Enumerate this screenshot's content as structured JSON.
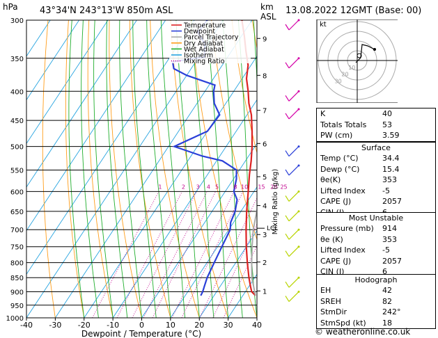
{
  "header": {
    "hpa_label": "hPa",
    "location": "43°34'N  243°13'W  850m  ASL",
    "km_label": "km",
    "asl_label": "ASL",
    "datetime": "13.08.2022  12GMT  (Base: 00)"
  },
  "chart_data": {
    "type": "line",
    "title": "",
    "xlabel": "Dewpoint / Temperature (°C)",
    "ylabel": "hPa",
    "xlim": [
      -40,
      40
    ],
    "ylim": [
      1000,
      300
    ],
    "x_ticks": [
      "-40",
      "-30",
      "-20",
      "-10",
      "0",
      "10",
      "20",
      "30",
      "40"
    ],
    "pressure_levels": [
      "300",
      "350",
      "400",
      "450",
      "500",
      "550",
      "600",
      "650",
      "700",
      "750",
      "800",
      "850",
      "900",
      "950",
      "1000"
    ],
    "km_ticks": [
      {
        "label": "9",
        "p": 323
      },
      {
        "label": "8",
        "p": 375
      },
      {
        "label": "7",
        "p": 432
      },
      {
        "label": "6",
        "p": 494
      },
      {
        "label": "5",
        "p": 565
      },
      {
        "label": "4",
        "p": 635
      },
      {
        "label": "3",
        "p": 714
      },
      {
        "label": "2",
        "p": 798
      },
      {
        "label": "1",
        "p": 897
      }
    ],
    "lcl_label": "LCL",
    "lcl_p": 696,
    "mixing_ratio_label": "Mixing Ratio (g/kg)",
    "mixing_ratio_values": [
      "1",
      "2",
      "3",
      "4",
      "5",
      "8",
      "10",
      "15",
      "20",
      "25"
    ],
    "legend": [
      "Temperature",
      "Dewpoint",
      "Parcel Trajectory",
      "Dry Adiabat",
      "Wet Adiabat",
      "Isotherm",
      "Mixing Ratio"
    ],
    "series": [
      {
        "name": "Temperature",
        "color": "#dd2222",
        "points": [
          [
            914,
            34.4
          ],
          [
            900,
            32.2
          ],
          [
            880,
            30.5
          ],
          [
            850,
            28.0
          ],
          [
            800,
            24.0
          ],
          [
            750,
            20.0
          ],
          [
            700,
            16.0
          ],
          [
            650,
            12.0
          ],
          [
            600,
            8.0
          ],
          [
            560,
            4.5
          ],
          [
            530,
            2.0
          ],
          [
            500,
            -1.0
          ],
          [
            470,
            -4.5
          ],
          [
            440,
            -8.5
          ],
          [
            420,
            -12.0
          ],
          [
            400,
            -15.0
          ],
          [
            380,
            -18.5
          ],
          [
            360,
            -21.0
          ],
          [
            340,
            -25.0
          ],
          [
            320,
            -29.0
          ],
          [
            300,
            -33.5
          ]
        ]
      },
      {
        "name": "Dewpoint",
        "color": "#2a3fd8",
        "points": [
          [
            914,
            15.4
          ],
          [
            900,
            15.2
          ],
          [
            880,
            14.5
          ],
          [
            850,
            13.5
          ],
          [
            800,
            12.5
          ],
          [
            750,
            11.5
          ],
          [
            700,
            10.5
          ],
          [
            680,
            9.0
          ],
          [
            650,
            8.0
          ],
          [
            620,
            6.0
          ],
          [
            600,
            3.0
          ],
          [
            570,
            1.0
          ],
          [
            550,
            -1.0
          ],
          [
            530,
            -8.0
          ],
          [
            520,
            -16.0
          ],
          [
            500,
            -28.0
          ],
          [
            470,
            -20.0
          ],
          [
            440,
            -19.5
          ],
          [
            420,
            -24.0
          ],
          [
            400,
            -27.0
          ],
          [
            390,
            -28.0
          ],
          [
            375,
            -40.0
          ],
          [
            365,
            -46.0
          ],
          [
            355,
            -48.0
          ],
          [
            348,
            -38.0
          ],
          [
            330,
            -41.0
          ],
          [
            315,
            -46.0
          ],
          [
            300,
            -45.5
          ]
        ]
      },
      {
        "name": "Parcel Trajectory",
        "color": "#aaaaaa",
        "points": [
          [
            914,
            34.4
          ],
          [
            850,
            29.0
          ],
          [
            800,
            25.5
          ],
          [
            750,
            22.0
          ],
          [
            700,
            18.5
          ],
          [
            650,
            15.5
          ],
          [
            600,
            12.5
          ],
          [
            550,
            9.0
          ],
          [
            500,
            5.5
          ],
          [
            450,
            1.5
          ],
          [
            400,
            -4.0
          ],
          [
            350,
            -11.0
          ],
          [
            320,
            -16.0
          ]
        ]
      }
    ],
    "wind_barbs_color": "#b8d400",
    "wind_barbs_upper_color": "#d400a8"
  },
  "hodograph": {
    "label": "kt",
    "ring_labels": [
      "10",
      "20",
      "30"
    ]
  },
  "indices": {
    "rows": [
      {
        "k": "K",
        "v": "40"
      },
      {
        "k": "Totals Totals",
        "v": "53"
      },
      {
        "k": "PW (cm)",
        "v": "3.59"
      }
    ]
  },
  "surface": {
    "title": "Surface",
    "rows": [
      {
        "k": "Temp (°C)",
        "v": "34.4"
      },
      {
        "k": "Dewp (°C)",
        "v": "15.4"
      },
      {
        "k": "θe(K)",
        "v": "353"
      },
      {
        "k": "Lifted Index",
        "v": "-5"
      },
      {
        "k": "CAPE (J)",
        "v": "2057"
      },
      {
        "k": "CIN (J)",
        "v": "6"
      }
    ]
  },
  "most_unstable": {
    "title": "Most Unstable",
    "rows": [
      {
        "k": "Pressure (mb)",
        "v": "914"
      },
      {
        "k": "θe (K)",
        "v": "353"
      },
      {
        "k": "Lifted Index",
        "v": "-5"
      },
      {
        "k": "CAPE (J)",
        "v": "2057"
      },
      {
        "k": "CIN (J)",
        "v": "6"
      }
    ]
  },
  "hodograph_panel": {
    "title": "Hodograph",
    "rows": [
      {
        "k": "EH",
        "v": "42"
      },
      {
        "k": "SREH",
        "v": "82"
      },
      {
        "k": "StmDir",
        "v": "242°"
      },
      {
        "k": "StmSpd (kt)",
        "v": "18"
      }
    ]
  },
  "footer": {
    "credit": "© weatheronline.co.uk"
  }
}
